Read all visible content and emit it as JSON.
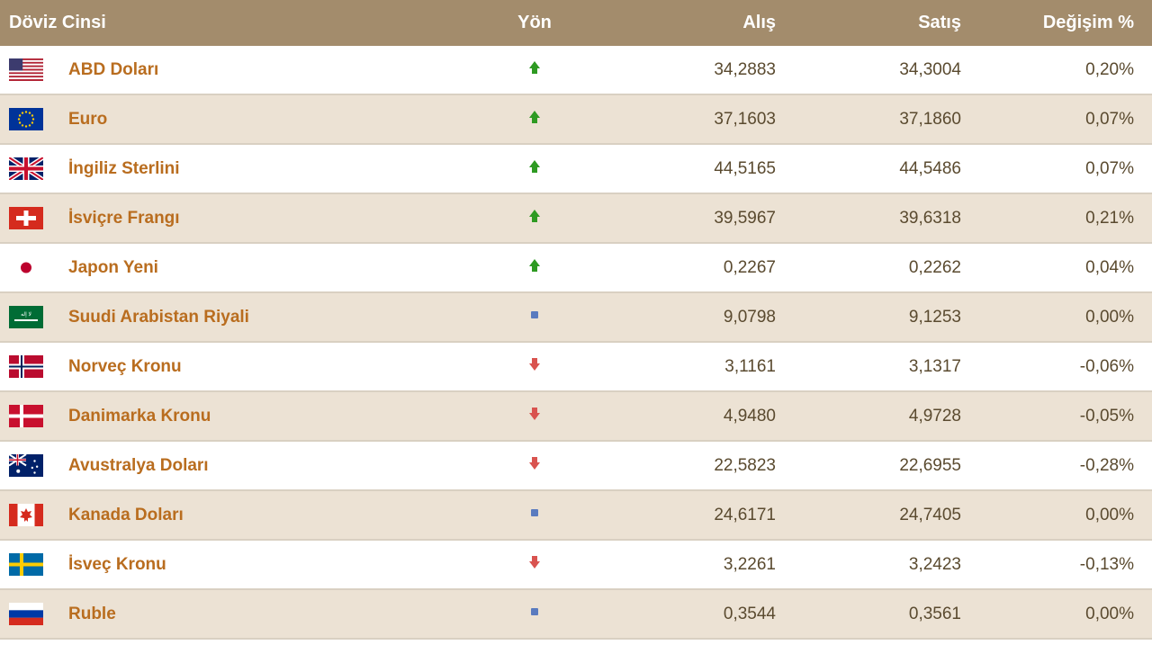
{
  "colors": {
    "header_bg": "#a38c6c",
    "header_text": "#ffffff",
    "row_white": "#ffffff",
    "row_beige": "#ece2d4",
    "border": "#d9d0c2",
    "name_text": "#b96d1f",
    "value_text": "#5a4a2f",
    "up": "#2e9a22",
    "down": "#d9534f",
    "neutral": "#5a7bbf"
  },
  "headers": {
    "currency": "Döviz Cinsi",
    "direction": "Yön",
    "buy": "Alış",
    "sell": "Satış",
    "change": "Değişim %"
  },
  "rows": [
    {
      "flag": "us",
      "name": "ABD Doları",
      "dir": "up",
      "buy": "34,2883",
      "sell": "34,3004",
      "chg": "0,20%"
    },
    {
      "flag": "eu",
      "name": "Euro",
      "dir": "up",
      "buy": "37,1603",
      "sell": "37,1860",
      "chg": "0,07%"
    },
    {
      "flag": "gb",
      "name": "İngiliz Sterlini",
      "dir": "up",
      "buy": "44,5165",
      "sell": "44,5486",
      "chg": "0,07%"
    },
    {
      "flag": "ch",
      "name": "İsviçre Frangı",
      "dir": "up",
      "buy": "39,5967",
      "sell": "39,6318",
      "chg": "0,21%"
    },
    {
      "flag": "jp",
      "name": "Japon Yeni",
      "dir": "up",
      "buy": "0,2267",
      "sell": "0,2262",
      "chg": "0,04%"
    },
    {
      "flag": "sa",
      "name": "Suudi Arabistan Riyali",
      "dir": "neutral",
      "buy": "9,0798",
      "sell": "9,1253",
      "chg": "0,00%"
    },
    {
      "flag": "no",
      "name": "Norveç Kronu",
      "dir": "down",
      "buy": "3,1161",
      "sell": "3,1317",
      "chg": "-0,06%"
    },
    {
      "flag": "dk",
      "name": "Danimarka Kronu",
      "dir": "down",
      "buy": "4,9480",
      "sell": "4,9728",
      "chg": "-0,05%"
    },
    {
      "flag": "au",
      "name": "Avustralya Doları",
      "dir": "down",
      "buy": "22,5823",
      "sell": "22,6955",
      "chg": "-0,28%"
    },
    {
      "flag": "ca",
      "name": "Kanada Doları",
      "dir": "neutral",
      "buy": "24,6171",
      "sell": "24,7405",
      "chg": "0,00%"
    },
    {
      "flag": "se",
      "name": "İsveç Kronu",
      "dir": "down",
      "buy": "3,2261",
      "sell": "3,2423",
      "chg": "-0,13%"
    },
    {
      "flag": "ru",
      "name": "Ruble",
      "dir": "neutral",
      "buy": "0,3544",
      "sell": "0,3561",
      "chg": "0,00%"
    }
  ]
}
